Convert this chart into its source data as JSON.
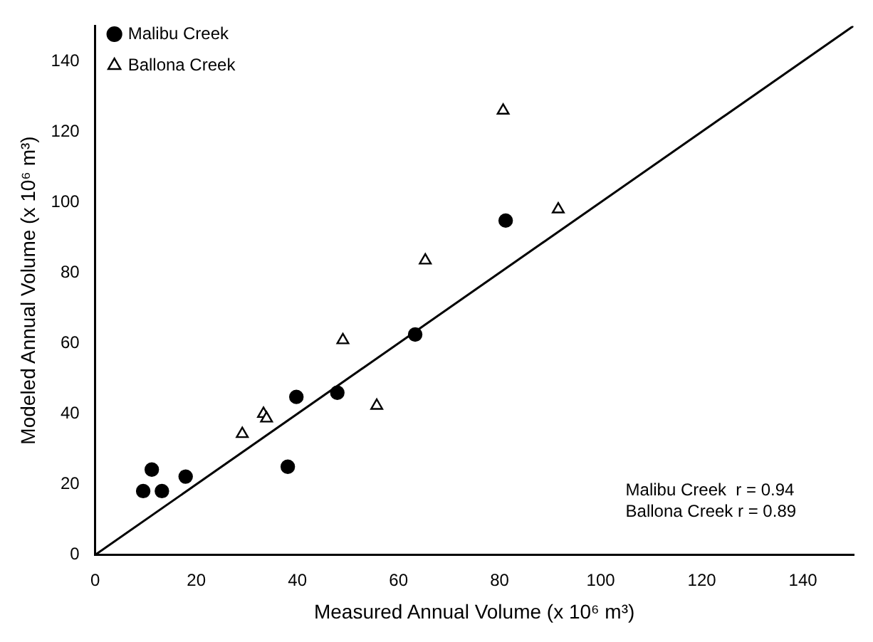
{
  "chart_data": {
    "type": "scatter",
    "xlabel": "Measured Annual Volume (x 10⁶ m³)",
    "ylabel": "Modeled Annual Volume (x 10⁶ m³)",
    "xlim": [
      0,
      150
    ],
    "ylim": [
      0,
      150
    ],
    "xticks": [
      0,
      20,
      40,
      60,
      80,
      100,
      120,
      140
    ],
    "yticks": [
      0,
      20,
      40,
      60,
      80,
      100,
      120,
      140
    ],
    "grid": false,
    "legend": "top left",
    "series": [
      {
        "name": "Malibu Creek",
        "color": "#000000",
        "marker": "circle",
        "x": [
          9.5,
          11.2,
          13.2,
          17.9,
          38.1,
          39.8,
          47.9,
          63.3,
          81.2
        ],
        "values": [
          18.1,
          24.2,
          18.1,
          22.2,
          25,
          44.8,
          46,
          62.5,
          94.8
        ]
      },
      {
        "name": "Ballona Creek",
        "color": "#000000",
        "marker": "triangle",
        "x": [
          29.1,
          33.3,
          33.9,
          49,
          55.7,
          65.3,
          80.7,
          91.6
        ],
        "values": [
          34.3,
          40,
          38.7,
          60.9,
          42.3,
          83.5,
          126,
          98
        ]
      },
      {
        "type": "line",
        "color": "#000000",
        "marker": "none",
        "x": [
          0,
          150
        ],
        "values": [
          0,
          150
        ]
      }
    ],
    "annotations": [
      "Malibu Creek  r = 0.94",
      "Ballona Creek r = 0.89"
    ]
  }
}
